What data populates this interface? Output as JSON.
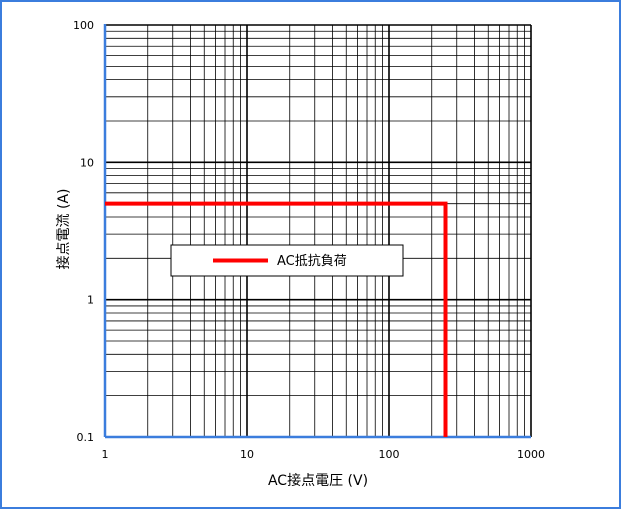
{
  "chart_data": {
    "type": "line",
    "title": "",
    "xlabel": "AC接点電圧 (V)",
    "ylabel": "接点電流 (A)",
    "x_scale": "log",
    "y_scale": "log",
    "xlim": [
      1,
      1000
    ],
    "ylim": [
      0.1,
      100
    ],
    "x_ticks": [
      1,
      10,
      100,
      1000
    ],
    "x_tick_labels": [
      "1",
      "10",
      "100",
      "1000"
    ],
    "y_ticks": [
      0.1,
      1,
      10,
      100
    ],
    "y_tick_labels": [
      "0.1",
      "1",
      "10",
      "100"
    ],
    "grid": true,
    "legend_placement": "center",
    "series": [
      {
        "name": "AC抵抗負荷",
        "color": "#ff0000",
        "x": [
          1,
          250,
          250
        ],
        "y": [
          5,
          5,
          0.1
        ]
      }
    ],
    "colors": {
      "border": "#3b7ddd",
      "axis": "#3b7ddd",
      "grid": "#000000"
    }
  }
}
